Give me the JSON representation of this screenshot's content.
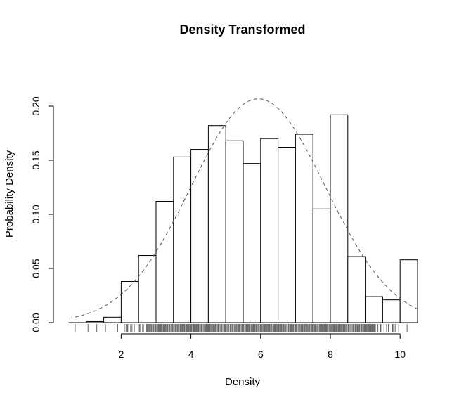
{
  "chart_data": {
    "type": "bar",
    "title": "Density Transformed",
    "xlabel": "Density",
    "ylabel": "Probability Density",
    "xlim": [
      0.5,
      10.5
    ],
    "ylim": [
      0,
      0.2
    ],
    "x_ticks": [
      2,
      4,
      6,
      8,
      10
    ],
    "y_ticks": [
      0.0,
      0.05,
      0.1,
      0.15,
      0.2
    ],
    "y_tick_labels": [
      "0.00",
      "0.05",
      "0.10",
      "0.15",
      "0.20"
    ],
    "bin_width": 0.5,
    "bins": [
      {
        "x0": 0.5,
        "x1": 1.0,
        "density": 0.0
      },
      {
        "x0": 1.0,
        "x1": 1.5,
        "density": 0.001
      },
      {
        "x0": 1.5,
        "x1": 2.0,
        "density": 0.005
      },
      {
        "x0": 2.0,
        "x1": 2.5,
        "density": 0.038
      },
      {
        "x0": 2.5,
        "x1": 3.0,
        "density": 0.062
      },
      {
        "x0": 3.0,
        "x1": 3.5,
        "density": 0.112
      },
      {
        "x0": 3.5,
        "x1": 4.0,
        "density": 0.153
      },
      {
        "x0": 4.0,
        "x1": 4.5,
        "density": 0.16
      },
      {
        "x0": 4.5,
        "x1": 5.0,
        "density": 0.182
      },
      {
        "x0": 5.0,
        "x1": 5.5,
        "density": 0.168
      },
      {
        "x0": 5.5,
        "x1": 6.0,
        "density": 0.147
      },
      {
        "x0": 6.0,
        "x1": 6.5,
        "density": 0.17
      },
      {
        "x0": 6.5,
        "x1": 7.0,
        "density": 0.162
      },
      {
        "x0": 7.0,
        "x1": 7.5,
        "density": 0.174
      },
      {
        "x0": 7.5,
        "x1": 8.0,
        "density": 0.105
      },
      {
        "x0": 8.0,
        "x1": 8.5,
        "density": 0.192
      },
      {
        "x0": 8.5,
        "x1": 9.0,
        "density": 0.061
      },
      {
        "x0": 9.0,
        "x1": 9.5,
        "density": 0.024
      },
      {
        "x0": 9.5,
        "x1": 10.0,
        "density": 0.021
      },
      {
        "x0": 10.0,
        "x1": 10.5,
        "density": 0.058
      }
    ],
    "normal_curve": {
      "mean": 5.93,
      "sd": 1.93,
      "style": "dashed",
      "color": "#555555"
    },
    "rug": {
      "color": "#666666",
      "sparse_points": [
        0.68,
        1.05,
        1.3,
        1.55,
        1.74,
        1.82,
        1.9,
        10.2
      ],
      "dense_range": [
        2.0,
        10.0
      ]
    }
  }
}
